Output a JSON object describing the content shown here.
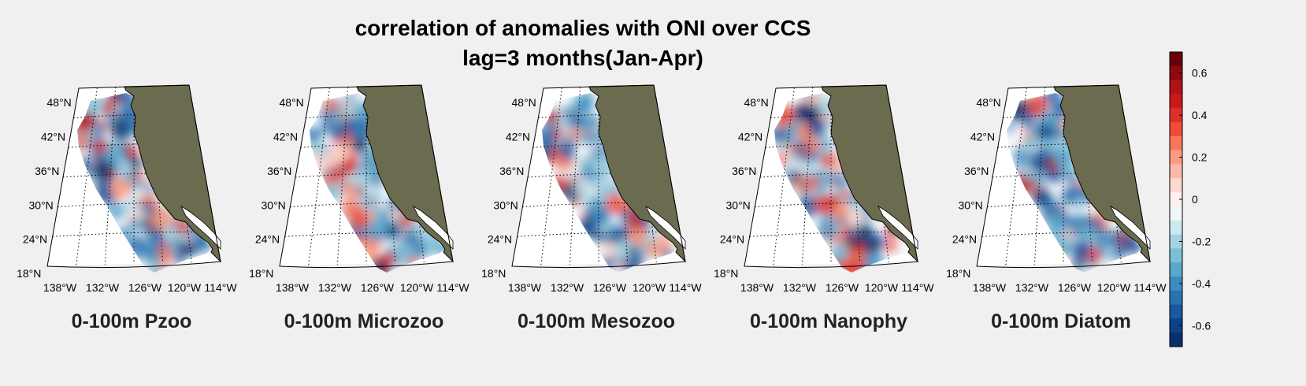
{
  "title": "correlation of anomalies with ONI over CCS",
  "subtitle": "lag=3 months(Jan-Apr)",
  "chart_data": {
    "type": "heatmap",
    "panels": [
      {
        "title": "0-100m Pzoo"
      },
      {
        "title": "0-100m Microzoo"
      },
      {
        "title": "0-100m Mesozoo"
      },
      {
        "title": "0-100m Nanophy"
      },
      {
        "title": "0-100m Diatom"
      }
    ],
    "lat_ticks": [
      "48°N",
      "42°N",
      "36°N",
      "30°N",
      "24°N",
      "18°N"
    ],
    "lon_ticks": [
      "138°W",
      "132°W",
      "126°W",
      "120°W",
      "114°W"
    ],
    "colorbar": {
      "range": [
        -0.7,
        0.7
      ],
      "ticks": [
        "0.6",
        "0.4",
        "0.2",
        "0",
        "-0.2",
        "-0.4",
        "-0.6"
      ],
      "colors": [
        "#67000d",
        "#8e0912",
        "#b11218",
        "#cb181d",
        "#e0302a",
        "#ef4b3b",
        "#f6775a",
        "#fb9c80",
        "#fcbba9",
        "#fdd8cf",
        "#fff0f0",
        "#eef8fb",
        "#cde9f0",
        "#a4d4e3",
        "#7ebfd8",
        "#5aa6cc",
        "#3d8cc0",
        "#2b72b0",
        "#1a58a0",
        "#0b4288",
        "#08306b"
      ]
    },
    "land_color": "#6b6b50"
  }
}
